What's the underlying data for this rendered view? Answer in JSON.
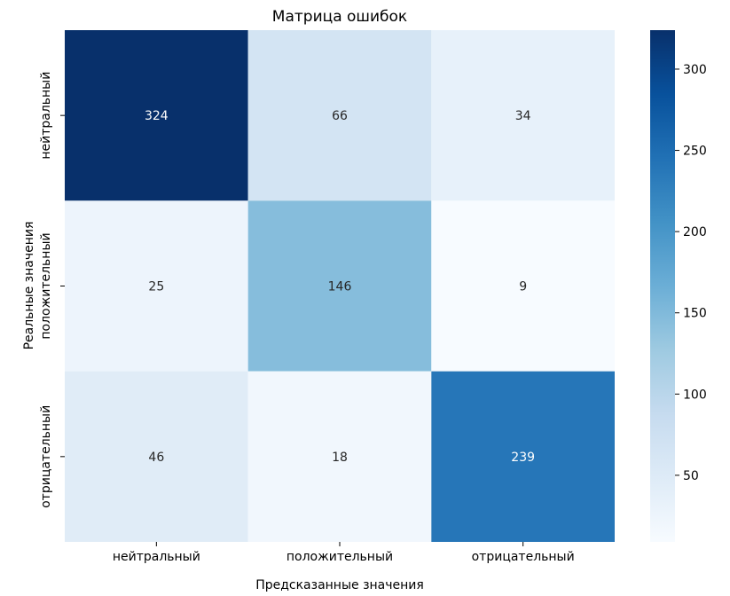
{
  "chart_data": {
    "type": "heatmap",
    "title": "Матрица ошибок",
    "xlabel": "Предсказанные значения",
    "ylabel": "Реальные значения",
    "x_categories": [
      "нейтральный",
      "положительный",
      "отрицательный"
    ],
    "y_categories": [
      "нейтральный",
      "положительный",
      "отрицательный"
    ],
    "values": [
      [
        324,
        66,
        34
      ],
      [
        25,
        146,
        9
      ],
      [
        46,
        18,
        239
      ]
    ],
    "colormap": "Blues",
    "colorbar": {
      "range": [
        9,
        324
      ],
      "ticks": [
        50,
        100,
        150,
        200,
        250,
        300
      ]
    },
    "colors": {
      "light_text": "#ffffff",
      "dark_text": "#262626"
    }
  }
}
